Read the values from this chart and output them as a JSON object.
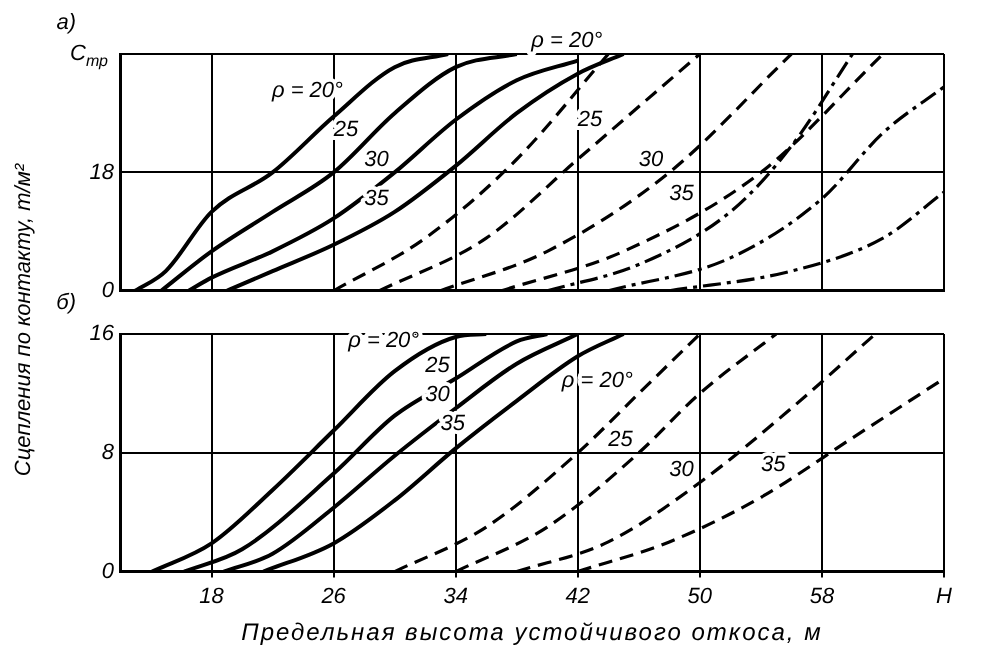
{
  "chart_data": [
    {
      "type": "line",
      "ylabel": "Сцепления по контакту, т/м²",
      "xlim": [
        12,
        66
      ],
      "xticks": [
        18,
        26,
        34,
        42,
        50,
        58,
        {
          "value": 66,
          "label": null
        }
      ],
      "ylim": [
        0,
        36
      ],
      "yticks": [
        0,
        18,
        {
          "value": 36,
          "label": "C$_{тр}$"
        }
      ],
      "grid": true,
      "legend": false,
      "marker": "none",
      "tick_labels": "y",
      "annotations": [
        "а)",
        {
          "text": "ρ = 20°",
          "x": 27,
          "y": 28.4
        },
        {
          "text": "25",
          "x": 28,
          "y": 22.5
        },
        {
          "text": "30",
          "x": 30,
          "y": 18
        },
        {
          "text": "35",
          "x": 30,
          "y": 12
        },
        {
          "text": "ρ = 20°",
          "x": 44,
          "y": 36
        },
        {
          "text": "25",
          "x": 44,
          "y": 24
        },
        {
          "text": "30",
          "x": 48,
          "y": 18
        },
        {
          "text": "35",
          "x": 50,
          "y": 12.7
        }
      ],
      "series": [
        {
          "color": "#000000",
          "line_style": "solid",
          "x": [
            13,
            15,
            18,
            22,
            26,
            30,
            33.5
          ],
          "values": [
            0,
            3,
            12,
            18,
            26.5,
            34,
            36
          ]
        },
        {
          "color": "#000000",
          "line_style": "solid",
          "x": [
            14.7,
            18,
            22,
            26,
            30,
            34,
            38
          ],
          "values": [
            0,
            6,
            12,
            18,
            27,
            34,
            36
          ]
        },
        {
          "color": "#000000",
          "line_style": "solid",
          "x": [
            16.5,
            18,
            22,
            26,
            30,
            34,
            38,
            42
          ],
          "values": [
            0,
            2,
            6,
            11,
            18,
            26,
            32,
            35
          ]
        },
        {
          "color": "#000000",
          "line_style": "solid",
          "x": [
            19,
            22,
            26,
            30,
            34,
            38,
            42,
            45
          ],
          "values": [
            0,
            3,
            7,
            12,
            19,
            27,
            33,
            36
          ]
        },
        {
          "color": "#000000",
          "line_style": "dashed",
          "x": [
            26,
            32,
            38,
            44
          ],
          "values": [
            0,
            8,
            20,
            36
          ]
        },
        {
          "color": "#000000",
          "line_style": "dashed",
          "x": [
            29,
            36,
            42,
            50
          ],
          "values": [
            0,
            8,
            20,
            36
          ]
        },
        {
          "color": "#000000",
          "line_style": "dashed",
          "x": [
            33,
            40,
            48,
            56
          ],
          "values": [
            0,
            6,
            18,
            36
          ]
        },
        {
          "color": "#000000",
          "line_style": "dashed",
          "x": [
            37,
            45,
            54,
            62
          ],
          "values": [
            0,
            6,
            18,
            36
          ]
        },
        {
          "color": "#000000",
          "line_style": "dotted",
          "x": [
            40,
            46,
            52,
            56,
            60
          ],
          "values": [
            0,
            4,
            12,
            22,
            36
          ]
        },
        {
          "color": "#000000",
          "line_style": "dotted",
          "x": [
            44,
            52,
            58,
            62,
            66
          ],
          "values": [
            0,
            5,
            14,
            24,
            31
          ]
        },
        {
          "color": "#000000",
          "line_style": "dotted",
          "x": [
            48,
            56,
            62,
            66
          ],
          "values": [
            0,
            3,
            8,
            15
          ]
        }
      ]
    },
    {
      "type": "line",
      "xlabel": "Предельная высота устойчивого откоса, м",
      "xlim": [
        12,
        66
      ],
      "xticks": [
        18,
        26,
        34,
        42,
        50,
        58,
        {
          "value": 66,
          "label": "H"
        }
      ],
      "ylim": [
        0,
        16
      ],
      "yticks": [
        0,
        8,
        16
      ],
      "grid": true,
      "legend": false,
      "marker": "none",
      "annotations": [
        "б)",
        {
          "text": "ρ = 20°",
          "x": 32,
          "y": 14.65
        },
        {
          "text": "25",
          "x": 34,
          "y": 13
        },
        {
          "text": "30",
          "x": 34,
          "y": 11
        },
        {
          "text": "35",
          "x": 35,
          "y": 9.1
        },
        {
          "text": "ρ = 20°",
          "x": 46,
          "y": 12
        },
        {
          "text": "25",
          "x": 46,
          "y": 8
        },
        {
          "text": "30",
          "x": 50,
          "y": 6
        },
        {
          "text": "35",
          "x": 56,
          "y": 6.33
        }
      ],
      "series": [
        {
          "color": "#000000",
          "line_style": "solid",
          "x": [
            14.1,
            18,
            22,
            26,
            30,
            34,
            36
          ],
          "values": [
            0,
            1.9,
            5.5,
            9.5,
            13.5,
            15.8,
            16
          ]
        },
        {
          "color": "#000000",
          "line_style": "solid",
          "x": [
            16.2,
            20,
            26,
            30,
            34,
            38,
            40
          ],
          "values": [
            0,
            1.5,
            6.6,
            10.5,
            13,
            15.5,
            16
          ]
        },
        {
          "color": "#000000",
          "line_style": "solid",
          "x": [
            18.8,
            22,
            26,
            30,
            34,
            38,
            42
          ],
          "values": [
            0,
            1.2,
            4.3,
            7.8,
            11,
            14,
            16
          ]
        },
        {
          "color": "#000000",
          "line_style": "solid",
          "x": [
            21.4,
            26,
            30,
            34,
            38,
            42,
            45
          ],
          "values": [
            0,
            1.9,
            4.8,
            8.3,
            11.5,
            14.5,
            16
          ]
        },
        {
          "color": "#000000",
          "line_style": "dashed",
          "x": [
            30,
            36,
            42,
            46,
            50
          ],
          "values": [
            0,
            3,
            8,
            12,
            16
          ]
        },
        {
          "color": "#000000",
          "line_style": "dashed",
          "x": [
            34,
            40,
            46,
            50,
            55
          ],
          "values": [
            0,
            3,
            8,
            12,
            16
          ]
        },
        {
          "color": "#000000",
          "line_style": "dashed",
          "x": [
            38,
            44,
            50,
            56,
            61.5
          ],
          "values": [
            0,
            2,
            6,
            11,
            16
          ]
        },
        {
          "color": "#000000",
          "line_style": "dashed",
          "x": [
            42,
            48,
            54,
            60,
            66
          ],
          "values": [
            0,
            2,
            5,
            9,
            13
          ]
        }
      ]
    }
  ]
}
